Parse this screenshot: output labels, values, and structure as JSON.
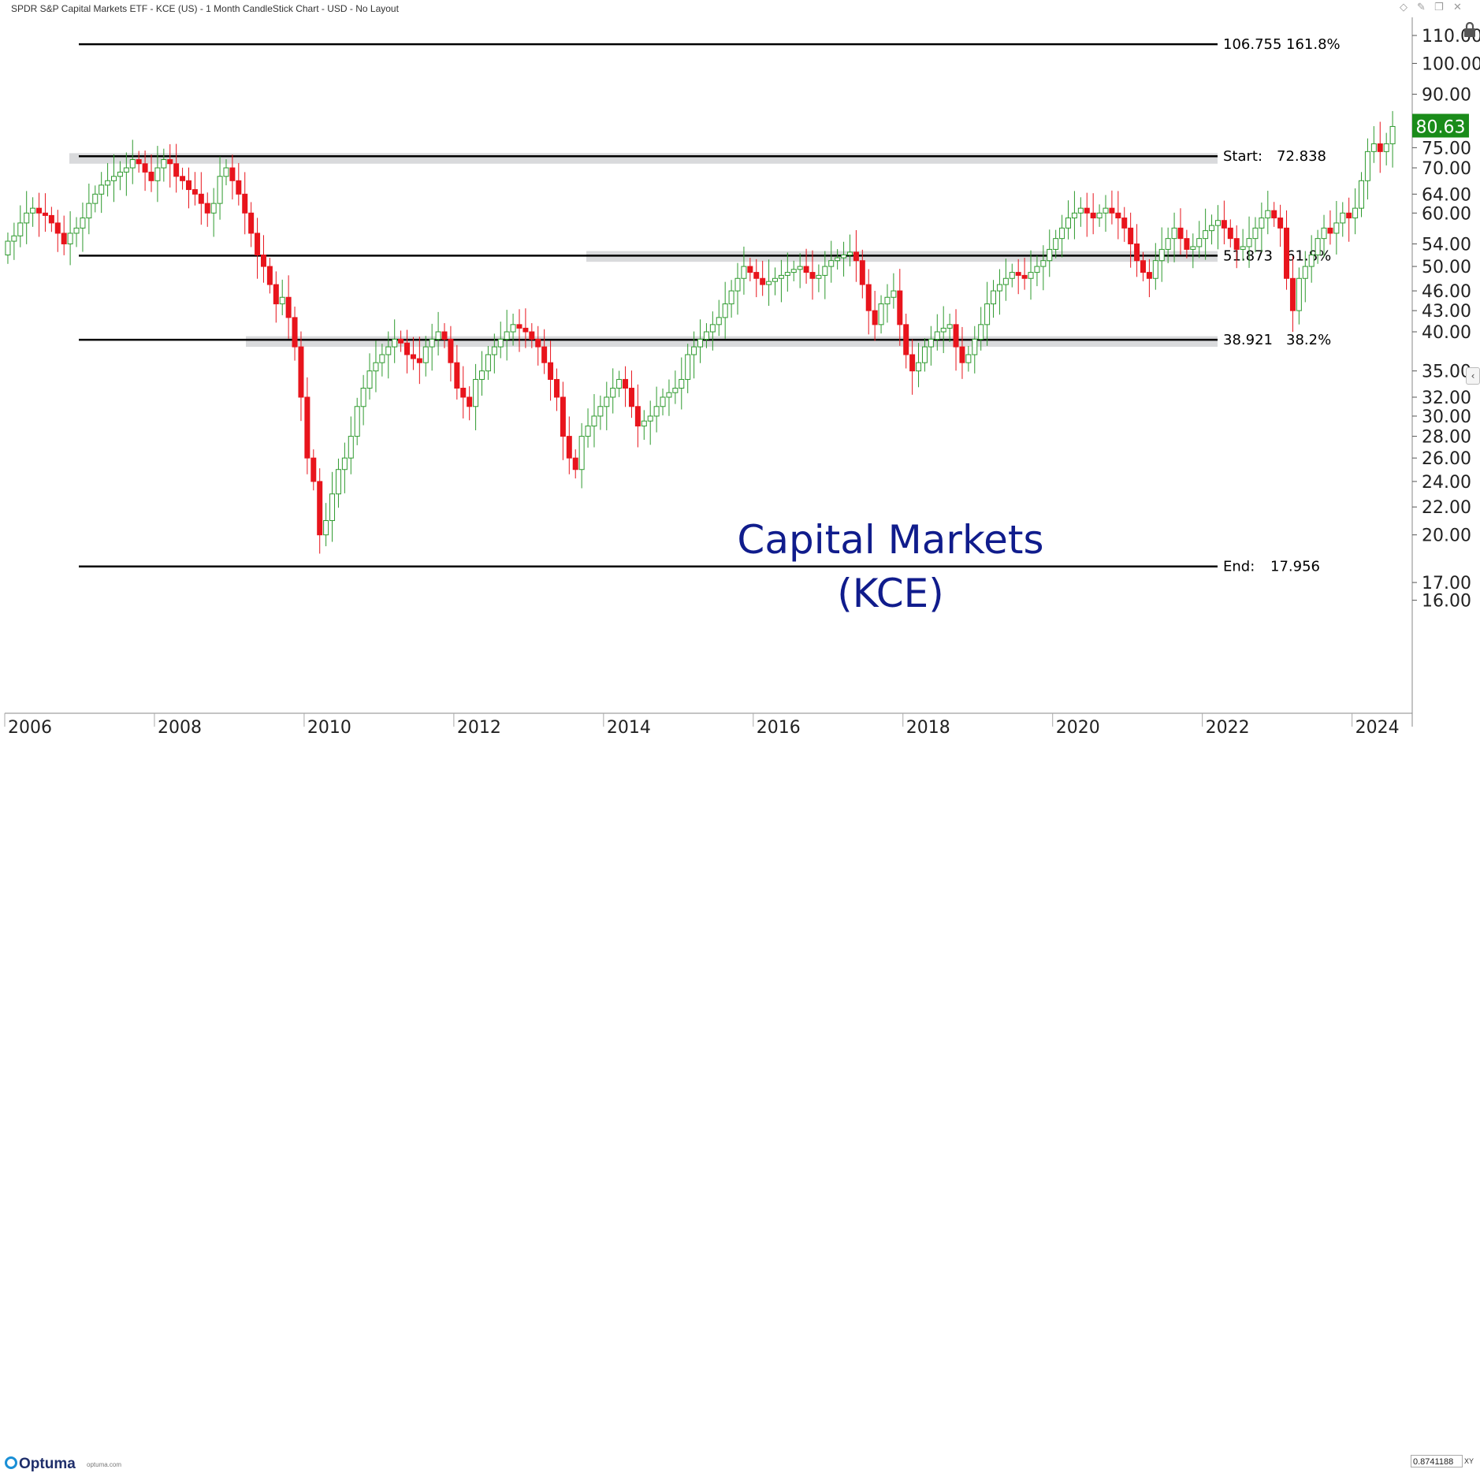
{
  "window": {
    "title": "SPDR S&P Capital Markets ETF - KCE (US) - 1 Month CandleStick Chart - USD - No Layout",
    "icons": [
      "diamond-icon",
      "pin-icon",
      "restore-icon",
      "close-icon"
    ]
  },
  "footer": {
    "logo": "Optuma",
    "logo_url": "optuma.com",
    "zoom_value": "0.8741188",
    "zoom_label": "XY"
  },
  "colors": {
    "up_candle": "#2e9a2e",
    "down_candle": "#e8141c",
    "level_line": "#000000",
    "zone_fill": "#d9dadc",
    "price_tag": "#1a8c1a",
    "annotation_text": "#101c8c"
  },
  "chart_data": {
    "type": "candlestick",
    "title": "Capital Markets",
    "subtitle": "(KCE)",
    "y_scale": "log",
    "ylim": [
      16.2,
      115
    ],
    "xlim": [
      "2006-01",
      "2024-12"
    ],
    "x_ticks": [
      "2006",
      "2008",
      "2010",
      "2012",
      "2014",
      "2016",
      "2018",
      "2020",
      "2022",
      "2024"
    ],
    "y_ticks": [
      "110.00",
      "100.00",
      "90.00",
      "75.00",
      "70.00",
      "64.00",
      "60.00",
      "54.00",
      "50.00",
      "46.00",
      "43.00",
      "40.00",
      "35.00",
      "32.00",
      "30.00",
      "28.00",
      "26.00",
      "24.00",
      "22.00",
      "20.00",
      "17.00",
      "16.00"
    ],
    "last_price": "80.63",
    "levels": [
      {
        "price": 106.755,
        "price_label": "106.755",
        "ratio": "161.8%",
        "prefix": ""
      },
      {
        "price": 72.838,
        "price_label": "72.838",
        "ratio": "",
        "prefix": "Start:"
      },
      {
        "price": 51.873,
        "price_label": "51.873",
        "ratio": "61.8%",
        "prefix": ""
      },
      {
        "price": 38.921,
        "price_label": "38.921",
        "ratio": "38.2%",
        "prefix": ""
      },
      {
        "price": 17.956,
        "price_label": "17.956",
        "ratio": "",
        "prefix": "End:"
      }
    ],
    "zones": [
      {
        "from": "2006-10",
        "to": "2020-12",
        "low": 71.0,
        "high": 73.6
      },
      {
        "from": "2013-05",
        "to": "2020-12",
        "low": 50.8,
        "high": 52.7
      },
      {
        "from": "2009-04",
        "to": "2020-12",
        "low": 38.0,
        "high": 39.4
      }
    ],
    "candles_start": "2006-01",
    "candles_close": [
      54.5,
      55.5,
      58,
      60,
      61,
      60,
      59.5,
      58,
      56,
      54,
      56,
      57,
      59,
      62,
      64,
      66,
      67,
      68,
      69,
      70,
      72,
      71,
      69,
      67,
      70,
      72,
      71,
      68,
      67,
      65,
      64,
      62,
      60,
      62,
      68,
      70,
      67,
      64,
      60,
      56,
      52,
      50,
      47,
      44,
      45,
      42,
      38,
      32,
      26,
      24,
      20,
      21,
      23,
      25,
      26,
      28,
      31,
      33,
      35,
      36,
      37,
      38,
      39,
      38.5,
      37,
      36.5,
      36,
      38,
      39,
      40,
      39,
      36,
      33,
      32,
      31,
      34,
      35,
      37,
      38,
      39,
      40,
      41,
      40.5,
      40,
      39,
      38,
      36,
      34,
      32,
      28,
      26,
      25,
      28,
      29,
      30,
      31,
      32,
      33,
      34,
      33,
      31,
      29,
      29.5,
      30,
      31,
      32,
      32.5,
      33,
      34,
      37,
      38,
      39,
      40,
      41,
      42,
      44,
      46,
      48,
      50,
      49,
      48,
      47,
      47.5,
      48,
      48.5,
      49,
      49.5,
      50,
      49,
      48,
      48.5,
      50,
      51,
      51.5,
      52,
      52.5,
      51,
      47,
      43,
      41,
      44,
      45,
      46,
      41,
      37,
      35,
      36,
      38,
      39,
      40,
      40.5,
      41,
      38,
      36,
      37,
      39,
      41,
      44,
      46,
      47,
      48,
      49,
      48.5,
      48,
      49,
      50,
      51,
      53,
      55,
      57,
      59,
      60,
      61,
      60,
      59,
      60,
      61,
      60,
      59,
      57,
      54,
      51,
      49,
      48,
      51,
      53,
      55,
      57,
      55,
      53,
      53.5,
      55,
      56.5,
      57.5,
      58.5,
      57,
      55,
      53,
      53.5,
      55,
      57,
      59,
      60.5,
      59,
      57,
      48,
      43,
      48,
      50,
      52,
      55,
      57,
      56,
      58,
      60,
      59,
      61,
      67,
      74,
      76,
      74,
      76,
      80.63
    ],
    "candles_open": [
      52,
      54.5,
      55.5,
      58,
      60,
      61,
      60,
      59.5,
      58,
      56,
      54,
      56,
      57,
      59,
      62,
      64,
      66,
      67,
      68,
      69,
      70,
      72,
      71,
      69,
      67,
      70,
      72,
      71,
      68,
      67,
      65,
      64,
      62,
      60,
      62,
      68,
      70,
      67,
      64,
      60,
      56,
      52,
      50,
      47,
      44,
      45,
      42,
      38,
      32,
      26,
      24,
      20,
      21,
      23,
      25,
      26,
      28,
      31,
      33,
      35,
      36,
      37,
      38,
      39,
      38.5,
      37,
      36.5,
      36,
      38,
      39,
      40,
      39,
      36,
      33,
      32,
      31,
      34,
      35,
      37,
      38,
      39,
      40,
      41,
      40.5,
      40,
      39,
      38,
      36,
      34,
      32,
      28,
      26,
      25,
      28,
      29,
      30,
      31,
      32,
      33,
      34,
      33,
      31,
      29,
      29.5,
      30,
      31,
      32,
      32.5,
      33,
      34,
      37,
      38,
      39,
      40,
      41,
      42,
      44,
      46,
      48,
      50,
      49,
      48,
      47,
      47.5,
      48,
      48.5,
      49,
      49.5,
      50,
      49,
      48,
      48.5,
      50,
      51,
      51.5,
      52,
      52.5,
      51,
      47,
      43,
      41,
      44,
      45,
      46,
      41,
      37,
      35,
      36,
      38,
      39,
      40,
      40.5,
      41,
      38,
      36,
      37,
      39,
      41,
      44,
      46,
      47,
      48,
      49,
      48.5,
      48,
      49,
      50,
      51,
      53,
      55,
      57,
      59,
      60,
      61,
      60,
      59,
      60,
      61,
      60,
      59,
      57,
      54,
      51,
      49,
      48,
      51,
      53,
      55,
      57,
      55,
      53,
      53.5,
      55,
      56.5,
      57.5,
      58.5,
      57,
      55,
      53,
      53.5,
      55,
      57,
      59,
      60.5,
      59,
      57,
      48,
      43,
      48,
      50,
      52,
      55,
      57,
      56,
      58,
      60,
      59,
      61,
      67,
      74,
      76,
      74,
      76
    ]
  }
}
